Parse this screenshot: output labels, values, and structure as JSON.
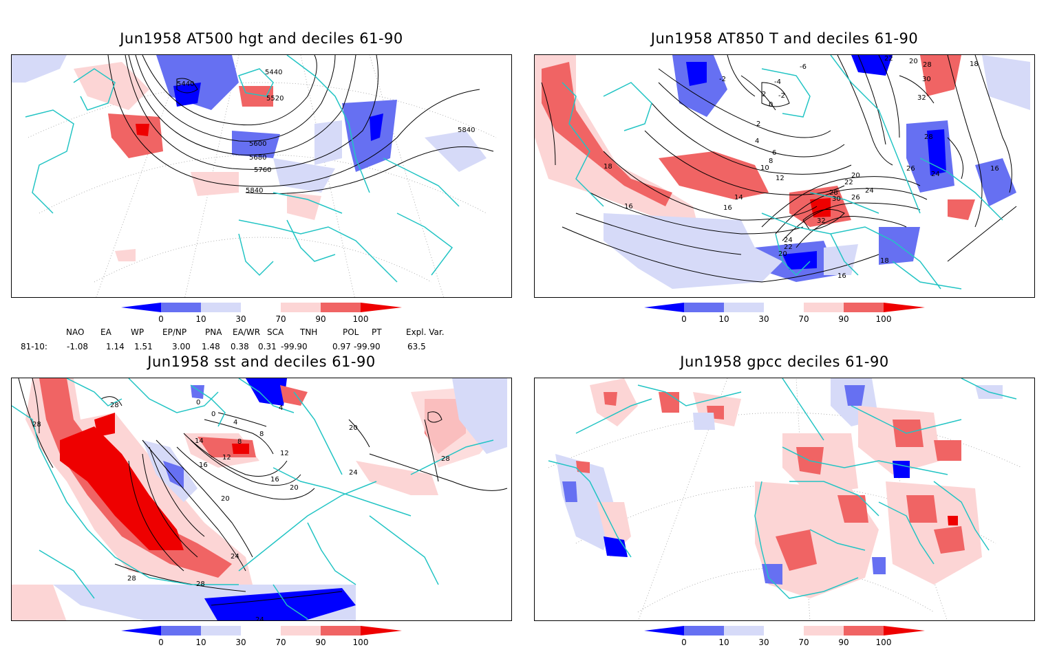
{
  "panels": [
    {
      "title": "Jun1958 AT500 hgt and deciles 61-90",
      "labels": [
        "5440",
        "5440",
        "5520",
        "5600",
        "5680",
        "5760",
        "5840",
        "5840"
      ]
    },
    {
      "title": "Jun1958 AT850 T and deciles 61-90",
      "labels": [
        "-6",
        "-4",
        "-2",
        "-2",
        "2",
        "0",
        "2",
        "4",
        "6",
        "8",
        "10",
        "12",
        "14",
        "16",
        "16",
        "16",
        "18",
        "18",
        "22",
        "20",
        "28",
        "30",
        "32",
        "28",
        "26",
        "24",
        "24",
        "20",
        "16",
        "18",
        "20",
        "22",
        "26",
        "28",
        "32",
        "30",
        "22",
        "24"
      ]
    },
    {
      "title": "Jun1958 sst and deciles 61-90",
      "labels": [
        "28",
        "28",
        "0",
        "0",
        "4",
        "4",
        "8",
        "8",
        "12",
        "12",
        "14",
        "16",
        "16",
        "20",
        "20",
        "20",
        "24",
        "24",
        "24",
        "28",
        "28",
        "28"
      ]
    },
    {
      "title": "Jun1958 gpcc deciles 61-90",
      "labels": []
    }
  ],
  "colorbar": {
    "ticks": [
      "0",
      "10",
      "30",
      "70",
      "90",
      "100"
    ],
    "colors": [
      "#0000ff",
      "#6670f2",
      "#d6daf8",
      "#ffffff",
      "#fcd5d5",
      "#f06464",
      "#ee0000"
    ]
  },
  "indices": {
    "row_label": "81-10:",
    "names": [
      "NAO",
      "EA",
      "WP",
      "EP/NP",
      "PNA",
      "EA/WR",
      "SCA",
      "TNH",
      "POL",
      "PT",
      "Expl. Var."
    ],
    "values": [
      "-1.08",
      "1.14",
      "1.51",
      "3.00",
      "1.48",
      "0.38",
      "0.31",
      "-99.90",
      "0.97",
      "-99.90",
      "63.5"
    ]
  },
  "colors": {
    "coast": "#22c4c4",
    "contour": "#000000",
    "grid": "#9a9a9a"
  }
}
